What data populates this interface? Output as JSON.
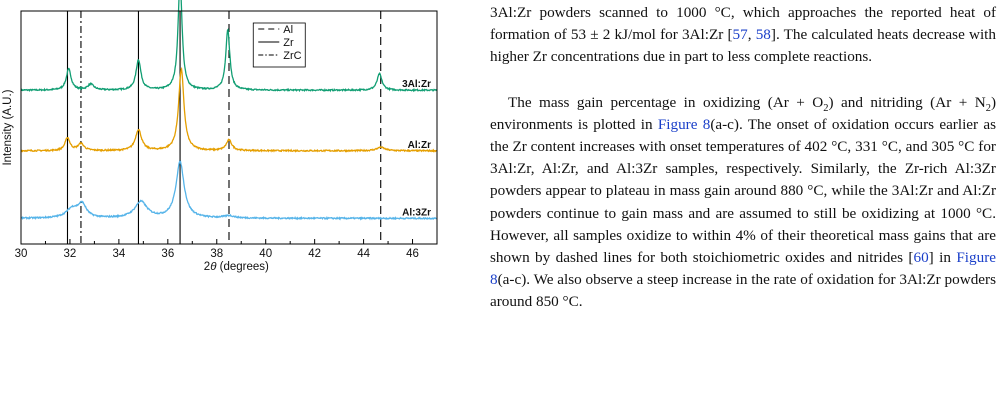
{
  "chart_data": {
    "type": "line",
    "xlabel_prefix": "2",
    "xlabel_theta": "θ",
    "xlabel_suffix": " (degrees)",
    "ylabel": "Intensity (A.U.)",
    "xlim": [
      30,
      47
    ],
    "x_ticks": [
      30,
      32,
      34,
      36,
      38,
      40,
      42,
      44,
      46
    ],
    "y_ticks": [],
    "grid": false,
    "legend_position": "top-center",
    "legend": [
      {
        "name": "Al",
        "style": "dashed"
      },
      {
        "name": "Zr",
        "style": "solid"
      },
      {
        "name": "ZrC",
        "style": "dashdot"
      }
    ],
    "reference_lines": [
      {
        "phase": "Zr",
        "x": 31.9,
        "style": "solid"
      },
      {
        "phase": "ZrC",
        "x": 32.45,
        "style": "dashdot"
      },
      {
        "phase": "Zr",
        "x": 34.8,
        "style": "solid"
      },
      {
        "phase": "Zr",
        "x": 36.5,
        "style": "solid"
      },
      {
        "phase": "Al",
        "x": 38.5,
        "style": "dashed"
      },
      {
        "phase": "Al",
        "x": 44.7,
        "style": "dashed"
      }
    ],
    "series": [
      {
        "name": "3Al:Zr",
        "color": "#119e73",
        "baseline": 0.66,
        "peaks": [
          [
            31.95,
            0.09,
            0.12
          ],
          [
            32.85,
            0.025,
            0.15
          ],
          [
            34.8,
            0.13,
            0.12
          ],
          [
            36.5,
            0.47,
            0.1
          ],
          [
            38.45,
            0.26,
            0.1
          ],
          [
            44.65,
            0.07,
            0.12
          ]
        ]
      },
      {
        "name": "Al:Zr",
        "color": "#e59f01",
        "baseline": 0.4,
        "peaks": [
          [
            31.9,
            0.055,
            0.12
          ],
          [
            32.45,
            0.03,
            0.15
          ],
          [
            34.8,
            0.09,
            0.15
          ],
          [
            36.55,
            0.35,
            0.13
          ],
          [
            38.5,
            0.045,
            0.14
          ],
          [
            44.7,
            0.015,
            0.2
          ]
        ]
      },
      {
        "name": "Al:3Zr",
        "color": "#56b4e9",
        "baseline": 0.11,
        "peaks": [
          [
            32.1,
            0.04,
            0.3
          ],
          [
            32.5,
            0.055,
            0.2
          ],
          [
            34.9,
            0.07,
            0.3
          ],
          [
            36.5,
            0.24,
            0.2
          ],
          [
            38.5,
            0.01,
            0.25
          ]
        ]
      }
    ]
  },
  "body_text": {
    "p1": "3Al:Zr powders scanned to 1000 °C, which approaches the reported heat of formation of 53 ± 2 kJ/mol for 3Al:Zr [",
    "p1_ref1": "57",
    "p1_sep": ", ",
    "p1_ref2": "58",
    "p1_end": "]. The calculated heats decrease with higher Zr concentrations due in part to less complete reactions.",
    "p2_a": "The mass gain percentage in oxidizing (Ar + O",
    "p2_sub1": "2",
    "p2_b": ") and nitriding (Ar + N",
    "p2_sub2": "2",
    "p2_c": ") environments is plotted in ",
    "p2_fig1": "Figure 8",
    "p2_d": "(a-c). The onset of oxidation occurs earlier as the Zr content increases with onset temperatures of 402 °C, 331 °C, and 305 °C for 3Al:Zr, Al:Zr, and Al:3Zr samples, respectively. Similarly, the Zr-rich Al:3Zr powders appear to plateau in mass gain around 880 °C, while the 3Al:Zr and Al:Zr powders continue to gain mass and are assumed to still be oxidizing at 1000 °C. However, all samples oxidize to within 4% of their theoretical mass gains that are shown by dashed lines for both stoichiometric oxides and nitrides [",
    "p2_ref": "60",
    "p2_e": "] in ",
    "p2_fig2": "Figure 8",
    "p2_f": "(a-c). We also observe a steep increase in the rate of oxidation for 3Al:Zr powders around 850 °C."
  }
}
